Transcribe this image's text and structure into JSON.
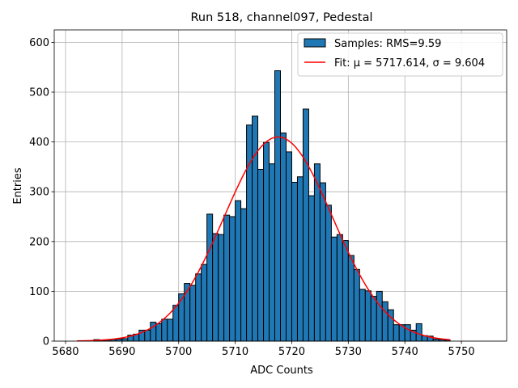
{
  "chart_data": {
    "type": "bar",
    "title": "Run 518, channel097, Pedestal",
    "xlabel": "ADC Counts",
    "ylabel": "Entries",
    "xlim": [
      5678,
      5758
    ],
    "ylim": [
      0,
      625
    ],
    "xticks": [
      5680,
      5690,
      5700,
      5710,
      5720,
      5730,
      5740,
      5750
    ],
    "yticks": [
      0,
      100,
      200,
      300,
      400,
      500,
      600
    ],
    "grid": true,
    "legend_position": "top-right",
    "bin_width": 1,
    "bin_starts": [
      5685,
      5686,
      5687,
      5688,
      5689,
      5690,
      5691,
      5692,
      5693,
      5694,
      5695,
      5696,
      5697,
      5698,
      5699,
      5700,
      5701,
      5702,
      5703,
      5704,
      5705,
      5706,
      5707,
      5708,
      5709,
      5710,
      5711,
      5712,
      5713,
      5714,
      5715,
      5716,
      5717,
      5718,
      5719,
      5720,
      5721,
      5722,
      5723,
      5724,
      5725,
      5726,
      5727,
      5728,
      5729,
      5730,
      5731,
      5732,
      5733,
      5734,
      5735,
      5736,
      5737,
      5738,
      5739,
      5740,
      5741,
      5742,
      5743,
      5744,
      5745,
      5746,
      5747
    ],
    "counts": [
      3,
      2,
      2,
      3,
      4,
      5,
      12,
      14,
      22,
      22,
      38,
      35,
      44,
      44,
      72,
      95,
      116,
      112,
      135,
      154,
      255,
      216,
      214,
      253,
      250,
      282,
      266,
      434,
      452,
      345,
      399,
      356,
      543,
      418,
      380,
      319,
      330,
      466,
      292,
      356,
      318,
      273,
      209,
      214,
      202,
      172,
      144,
      104,
      101,
      90,
      100,
      79,
      63,
      33,
      33,
      33,
      22,
      35,
      11,
      10,
      4,
      3,
      2
    ],
    "series": [
      {
        "name": "Samples: RMS=9.59",
        "kind": "histogram",
        "color": "#1f77b4"
      },
      {
        "name": "Fit: μ = 5717.614, σ = 9.604",
        "kind": "gaussian",
        "mu": 5717.614,
        "sigma": 9.604,
        "amplitude": 410,
        "x_range": [
          5682,
          5748
        ],
        "color": "#ff0000"
      }
    ]
  }
}
